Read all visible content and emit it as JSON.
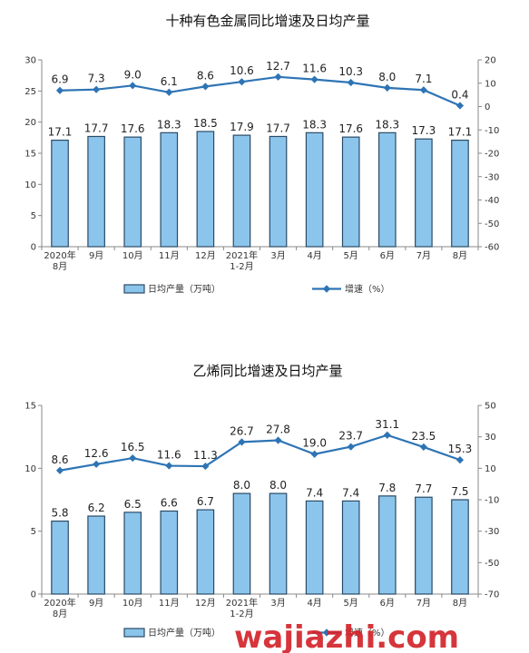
{
  "chart_data": [
    {
      "type": "bar",
      "title": "十种有色金属同比增速及日均产量",
      "categories": [
        [
          "2020年",
          "8月"
        ],
        [
          "9月"
        ],
        [
          "10月"
        ],
        [
          "11月"
        ],
        [
          "12月"
        ],
        [
          "2021年",
          "1-2月"
        ],
        [
          "3月"
        ],
        [
          "4月"
        ],
        [
          "5月"
        ],
        [
          "6月"
        ],
        [
          "7月"
        ],
        [
          "8月"
        ]
      ],
      "series": [
        {
          "name": "日均产量（万吨）",
          "type": "bar",
          "axis": "left",
          "values": [
            17.1,
            17.7,
            17.6,
            18.3,
            18.5,
            17.9,
            17.7,
            18.3,
            17.6,
            18.3,
            17.3,
            17.1
          ],
          "labels": [
            "17.1",
            "17.7",
            "17.6",
            "18.3",
            "18.5",
            "17.9",
            "17.7",
            "18.3",
            "17.6",
            "18.3",
            "17.3",
            "17.1"
          ]
        },
        {
          "name": "增速（%）",
          "type": "line",
          "axis": "right",
          "values": [
            6.9,
            7.3,
            9.0,
            6.1,
            8.6,
            10.6,
            12.7,
            11.6,
            10.3,
            8.0,
            7.1,
            0.4
          ],
          "labels": [
            "6.9",
            "7.3",
            "9.0",
            "6.1",
            "8.6",
            "10.6",
            "12.7",
            "11.6",
            "10.3",
            "8.0",
            "7.1",
            "0.4"
          ]
        }
      ],
      "left_axis": {
        "min": 0,
        "max": 30,
        "ticks": [
          "0",
          "5",
          "10",
          "15",
          "20",
          "25",
          "30"
        ]
      },
      "right_axis": {
        "min": -60,
        "max": 20,
        "ticks": [
          "-60",
          "-50",
          "-40",
          "-30",
          "-20",
          "-10",
          "0",
          "10",
          "20"
        ]
      },
      "legend": [
        "日均产量（万吨）",
        "增速（%）"
      ],
      "legend_position": "bottom",
      "grid": false
    },
    {
      "type": "bar",
      "title": "乙烯同比增速及日均产量",
      "categories": [
        [
          "2020年",
          "8月"
        ],
        [
          "9月"
        ],
        [
          "10月"
        ],
        [
          "11月"
        ],
        [
          "12月"
        ],
        [
          "2021年",
          "1-2月"
        ],
        [
          "3月"
        ],
        [
          "4月"
        ],
        [
          "5月"
        ],
        [
          "6月"
        ],
        [
          "7月"
        ],
        [
          "8月"
        ]
      ],
      "series": [
        {
          "name": "日均产量（万吨）",
          "type": "bar",
          "axis": "left",
          "values": [
            5.8,
            6.2,
            6.5,
            6.6,
            6.7,
            8.0,
            8.0,
            7.4,
            7.4,
            7.8,
            7.7,
            7.5
          ],
          "labels": [
            "5.8",
            "6.2",
            "6.5",
            "6.6",
            "6.7",
            "8.0",
            "8.0",
            "7.4",
            "7.4",
            "7.8",
            "7.7",
            "7.5"
          ]
        },
        {
          "name": "增速（%）",
          "type": "line",
          "axis": "right",
          "values": [
            8.6,
            12.6,
            16.5,
            11.6,
            11.3,
            26.7,
            27.8,
            19.0,
            23.7,
            31.1,
            23.5,
            15.3
          ],
          "labels": [
            "8.6",
            "12.6",
            "16.5",
            "11.6",
            "11.3",
            "26.7",
            "27.8",
            "19.0",
            "23.7",
            "31.1",
            "23.5",
            "15.3"
          ]
        }
      ],
      "left_axis": {
        "min": 0,
        "max": 15,
        "ticks": [
          "0",
          "5",
          "10",
          "15"
        ]
      },
      "right_axis": {
        "min": -70,
        "max": 50,
        "ticks": [
          "-70",
          "-50",
          "-30",
          "-10",
          "10",
          "30",
          "50"
        ]
      },
      "legend": [
        "日均产量（万吨）",
        "增速（%）"
      ],
      "legend_position": "bottom",
      "grid": false
    }
  ],
  "watermark": "wajiazhi.com",
  "colors": {
    "bar_fill": "#8cc5ec",
    "bar_stroke": "#2a4a66",
    "line": "#2e74b5",
    "watermark": "#d2242a"
  }
}
